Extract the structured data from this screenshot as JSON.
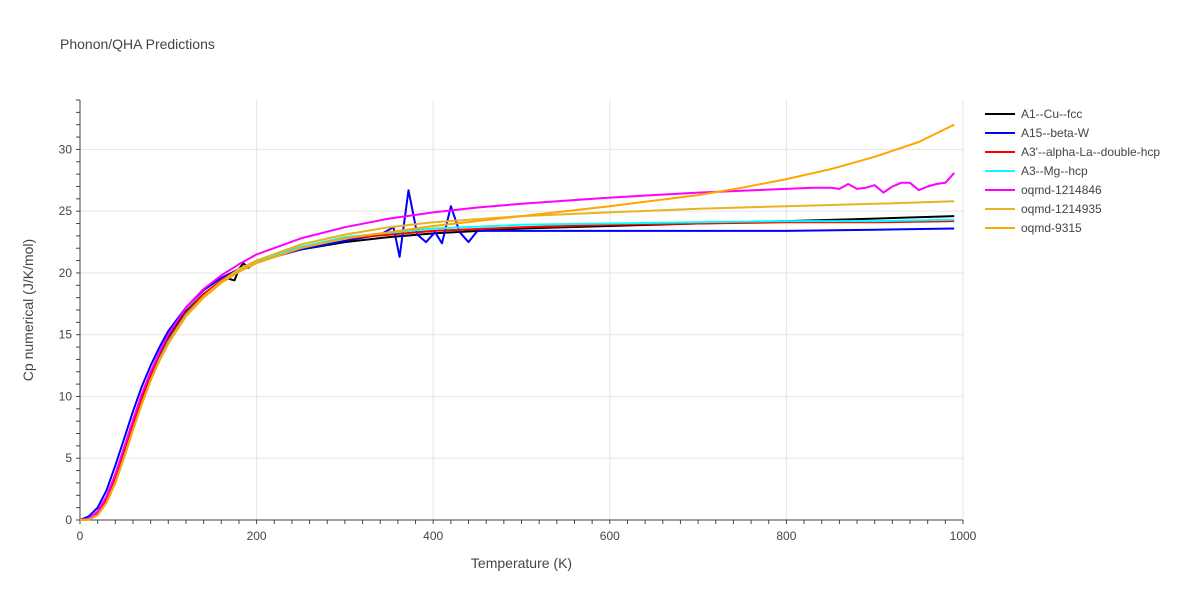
{
  "chart_data": {
    "type": "line",
    "title": "Phonon/QHA Predictions",
    "xlabel": "Temperature (K)",
    "ylabel": "Cp numerical (J/K/mol)",
    "xlim": [
      0,
      1000
    ],
    "ylim": [
      0,
      34
    ],
    "xticks": [
      0,
      200,
      400,
      600,
      800,
      1000
    ],
    "yticks": [
      0,
      5,
      10,
      15,
      20,
      25,
      30
    ],
    "grid": true,
    "legend_position": "right",
    "series": [
      {
        "name": "A1--Cu--fcc",
        "color": "#000000",
        "points": [
          [
            0,
            0
          ],
          [
            10,
            0.1
          ],
          [
            20,
            0.6
          ],
          [
            30,
            1.8
          ],
          [
            40,
            3.5
          ],
          [
            50,
            5.6
          ],
          [
            60,
            7.8
          ],
          [
            70,
            9.9
          ],
          [
            80,
            11.8
          ],
          [
            90,
            13.4
          ],
          [
            100,
            14.8
          ],
          [
            120,
            16.9
          ],
          [
            140,
            18.3
          ],
          [
            160,
            19.3
          ],
          [
            165,
            19.6
          ],
          [
            170,
            19.5
          ],
          [
            175,
            19.4
          ],
          [
            180,
            20.3
          ],
          [
            185,
            20.8
          ],
          [
            190,
            20.4
          ],
          [
            200,
            20.9
          ],
          [
            220,
            21.4
          ],
          [
            250,
            21.9
          ],
          [
            300,
            22.5
          ],
          [
            350,
            22.9
          ],
          [
            400,
            23.2
          ],
          [
            500,
            23.6
          ],
          [
            600,
            23.8
          ],
          [
            700,
            24.0
          ],
          [
            800,
            24.2
          ],
          [
            900,
            24.4
          ],
          [
            990,
            24.6
          ]
        ]
      },
      {
        "name": "A15--beta-W",
        "color": "#0000ff",
        "points": [
          [
            0,
            0
          ],
          [
            10,
            0.3
          ],
          [
            20,
            1.0
          ],
          [
            30,
            2.4
          ],
          [
            40,
            4.4
          ],
          [
            50,
            6.6
          ],
          [
            60,
            8.8
          ],
          [
            70,
            10.8
          ],
          [
            80,
            12.5
          ],
          [
            90,
            14.0
          ],
          [
            100,
            15.3
          ],
          [
            120,
            17.2
          ],
          [
            140,
            18.6
          ],
          [
            160,
            19.6
          ],
          [
            180,
            20.3
          ],
          [
            200,
            20.9
          ],
          [
            250,
            21.9
          ],
          [
            300,
            22.6
          ],
          [
            340,
            23.1
          ],
          [
            355,
            23.7
          ],
          [
            362,
            21.3
          ],
          [
            372,
            26.7
          ],
          [
            382,
            23.1
          ],
          [
            392,
            22.5
          ],
          [
            402,
            23.3
          ],
          [
            410,
            22.4
          ],
          [
            420,
            25.4
          ],
          [
            430,
            23.3
          ],
          [
            440,
            22.5
          ],
          [
            450,
            23.4
          ],
          [
            500,
            23.4
          ],
          [
            600,
            23.4
          ],
          [
            700,
            23.4
          ],
          [
            800,
            23.4
          ],
          [
            900,
            23.5
          ],
          [
            990,
            23.6
          ]
        ]
      },
      {
        "name": "A3'--alpha-La--double-hcp",
        "color": "#ff0000",
        "points": [
          [
            0,
            0
          ],
          [
            10,
            0.05
          ],
          [
            20,
            0.5
          ],
          [
            30,
            1.6
          ],
          [
            40,
            3.3
          ],
          [
            50,
            5.4
          ],
          [
            60,
            7.6
          ],
          [
            70,
            9.7
          ],
          [
            80,
            11.6
          ],
          [
            90,
            13.2
          ],
          [
            100,
            14.6
          ],
          [
            120,
            16.8
          ],
          [
            140,
            18.3
          ],
          [
            160,
            19.4
          ],
          [
            180,
            20.3
          ],
          [
            200,
            21.0
          ],
          [
            250,
            22.1
          ],
          [
            300,
            22.8
          ],
          [
            400,
            23.4
          ],
          [
            500,
            23.7
          ],
          [
            600,
            23.9
          ],
          [
            700,
            24.0
          ],
          [
            800,
            24.1
          ],
          [
            900,
            24.1
          ],
          [
            990,
            24.2
          ]
        ]
      },
      {
        "name": "A3--Mg--hcp",
        "color": "#00ffff",
        "points": [
          [
            0,
            0
          ],
          [
            10,
            0.03
          ],
          [
            20,
            0.4
          ],
          [
            30,
            1.4
          ],
          [
            40,
            3.0
          ],
          [
            50,
            5.1
          ],
          [
            60,
            7.3
          ],
          [
            70,
            9.4
          ],
          [
            80,
            11.3
          ],
          [
            90,
            13.0
          ],
          [
            100,
            14.4
          ],
          [
            120,
            16.6
          ],
          [
            140,
            18.1
          ],
          [
            160,
            19.3
          ],
          [
            180,
            20.2
          ],
          [
            200,
            20.9
          ],
          [
            250,
            22.1
          ],
          [
            300,
            22.9
          ],
          [
            400,
            23.6
          ],
          [
            500,
            23.9
          ],
          [
            600,
            24.0
          ],
          [
            700,
            24.1
          ],
          [
            800,
            24.2
          ],
          [
            900,
            24.2
          ],
          [
            990,
            24.3
          ]
        ]
      },
      {
        "name": "oqmd-1214846",
        "color": "#ff00ff",
        "points": [
          [
            0,
            0
          ],
          [
            10,
            0.1
          ],
          [
            20,
            0.7
          ],
          [
            30,
            1.9
          ],
          [
            40,
            3.7
          ],
          [
            50,
            5.9
          ],
          [
            60,
            8.1
          ],
          [
            70,
            10.2
          ],
          [
            80,
            12.0
          ],
          [
            90,
            13.6
          ],
          [
            100,
            15.0
          ],
          [
            120,
            17.2
          ],
          [
            140,
            18.7
          ],
          [
            160,
            19.8
          ],
          [
            180,
            20.7
          ],
          [
            200,
            21.5
          ],
          [
            250,
            22.8
          ],
          [
            300,
            23.7
          ],
          [
            350,
            24.4
          ],
          [
            400,
            24.9
          ],
          [
            450,
            25.3
          ],
          [
            500,
            25.6
          ],
          [
            600,
            26.1
          ],
          [
            700,
            26.5
          ],
          [
            800,
            26.8
          ],
          [
            830,
            26.9
          ],
          [
            850,
            26.9
          ],
          [
            860,
            26.8
          ],
          [
            870,
            27.2
          ],
          [
            880,
            26.8
          ],
          [
            890,
            26.9
          ],
          [
            900,
            27.1
          ],
          [
            910,
            26.5
          ],
          [
            920,
            27.0
          ],
          [
            930,
            27.3
          ],
          [
            940,
            27.3
          ],
          [
            950,
            26.7
          ],
          [
            960,
            27.0
          ],
          [
            970,
            27.2
          ],
          [
            980,
            27.3
          ],
          [
            990,
            28.1
          ]
        ]
      },
      {
        "name": "oqmd-1214935",
        "color": "#e6b422",
        "points": [
          [
            0,
            0
          ],
          [
            10,
            0.03
          ],
          [
            20,
            0.4
          ],
          [
            30,
            1.4
          ],
          [
            40,
            3.0
          ],
          [
            50,
            5.1
          ],
          [
            60,
            7.3
          ],
          [
            70,
            9.4
          ],
          [
            80,
            11.3
          ],
          [
            90,
            12.9
          ],
          [
            100,
            14.3
          ],
          [
            120,
            16.5
          ],
          [
            140,
            18.1
          ],
          [
            160,
            19.3
          ],
          [
            180,
            20.3
          ],
          [
            200,
            21.0
          ],
          [
            250,
            22.3
          ],
          [
            300,
            23.1
          ],
          [
            350,
            23.7
          ],
          [
            400,
            24.1
          ],
          [
            500,
            24.6
          ],
          [
            600,
            24.9
          ],
          [
            700,
            25.2
          ],
          [
            800,
            25.4
          ],
          [
            900,
            25.6
          ],
          [
            990,
            25.8
          ]
        ]
      },
      {
        "name": "oqmd-9315",
        "color": "#ffa500",
        "points": [
          [
            0,
            0
          ],
          [
            10,
            0.03
          ],
          [
            20,
            0.4
          ],
          [
            30,
            1.4
          ],
          [
            40,
            3.0
          ],
          [
            50,
            5.1
          ],
          [
            60,
            7.3
          ],
          [
            70,
            9.4
          ],
          [
            80,
            11.3
          ],
          [
            90,
            12.9
          ],
          [
            100,
            14.3
          ],
          [
            120,
            16.5
          ],
          [
            140,
            18.0
          ],
          [
            160,
            19.2
          ],
          [
            180,
            20.1
          ],
          [
            200,
            20.8
          ],
          [
            250,
            22.0
          ],
          [
            300,
            22.8
          ],
          [
            400,
            23.8
          ],
          [
            500,
            24.6
          ],
          [
            600,
            25.4
          ],
          [
            700,
            26.3
          ],
          [
            750,
            26.9
          ],
          [
            800,
            27.6
          ],
          [
            850,
            28.4
          ],
          [
            900,
            29.4
          ],
          [
            950,
            30.6
          ],
          [
            990,
            32.0
          ]
        ]
      }
    ]
  }
}
